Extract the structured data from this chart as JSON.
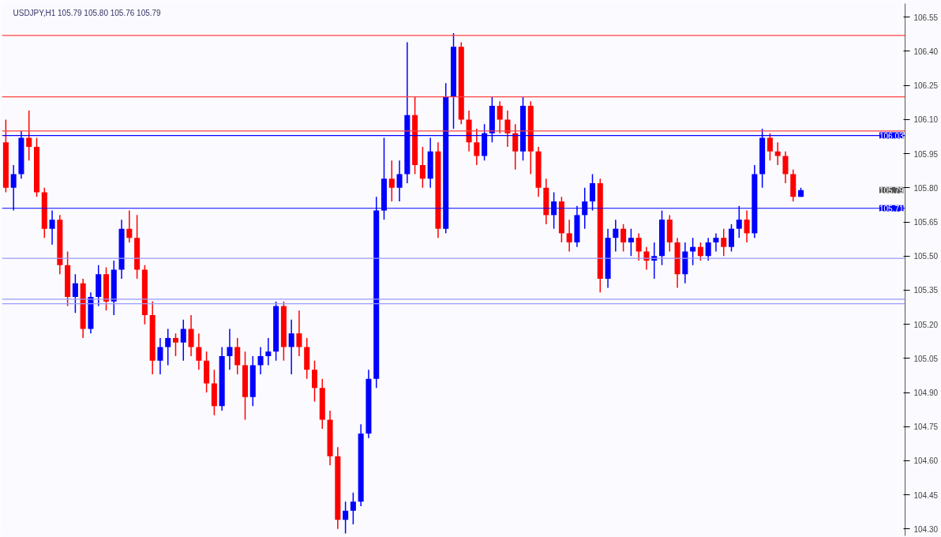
{
  "chart_data": {
    "type": "candlestick",
    "title": "USDJPY,H1  105.79 105.80 105.76 105.79",
    "categories": [
      null,
      null,
      null,
      null,
      null,
      null,
      null,
      null,
      null,
      null,
      null,
      null,
      null,
      null,
      null,
      null,
      null,
      null,
      null,
      null,
      null,
      null,
      null,
      null,
      null,
      null,
      null,
      null,
      null,
      null,
      null,
      null,
      null,
      null,
      null,
      null,
      null,
      null,
      null,
      null,
      null,
      null,
      null,
      null,
      null,
      null,
      null,
      null,
      null,
      null,
      null,
      null,
      null,
      null,
      null,
      null,
      null,
      null,
      null,
      null,
      null,
      null,
      null,
      null,
      null,
      null,
      null,
      null,
      null,
      null,
      null,
      null,
      null,
      null,
      null,
      null,
      null,
      null,
      null,
      null,
      null,
      null,
      null,
      null,
      null,
      null,
      null,
      null,
      null,
      null,
      null,
      null,
      null,
      null,
      null,
      null,
      null,
      null,
      null,
      null,
      null,
      null,
      null,
      null,
      null,
      null,
      null,
      null,
      null,
      null,
      null,
      null,
      null,
      null,
      null,
      null,
      null
    ],
    "ohlc": [
      [
        106.0,
        106.1,
        105.78,
        105.8
      ],
      [
        105.8,
        105.9,
        105.7,
        105.86
      ],
      [
        105.86,
        106.05,
        105.84,
        106.02
      ],
      [
        106.02,
        106.14,
        105.92,
        105.98
      ],
      [
        105.98,
        106.02,
        105.76,
        105.78
      ],
      [
        105.78,
        105.8,
        105.58,
        105.62
      ],
      [
        105.62,
        105.7,
        105.55,
        105.66
      ],
      [
        105.66,
        105.68,
        105.42,
        105.46
      ],
      [
        105.46,
        105.52,
        105.28,
        105.32
      ],
      [
        105.32,
        105.42,
        105.25,
        105.38
      ],
      [
        105.38,
        105.4,
        105.14,
        105.18
      ],
      [
        105.18,
        105.34,
        105.16,
        105.32
      ],
      [
        105.32,
        105.46,
        105.28,
        105.42
      ],
      [
        105.42,
        105.45,
        105.26,
        105.3
      ],
      [
        105.3,
        105.48,
        105.24,
        105.44
      ],
      [
        105.44,
        105.66,
        105.4,
        105.62
      ],
      [
        105.62,
        105.7,
        105.56,
        105.58
      ],
      [
        105.58,
        105.68,
        105.4,
        105.44
      ],
      [
        105.44,
        105.46,
        105.2,
        105.24
      ],
      [
        105.24,
        105.3,
        104.98,
        105.04
      ],
      [
        105.04,
        105.14,
        104.98,
        105.1
      ],
      [
        105.1,
        105.18,
        105.02,
        105.14
      ],
      [
        105.14,
        105.16,
        105.06,
        105.12
      ],
      [
        105.12,
        105.22,
        105.04,
        105.18
      ],
      [
        105.18,
        105.24,
        105.06,
        105.1
      ],
      [
        105.1,
        105.16,
        105.0,
        105.04
      ],
      [
        105.04,
        105.08,
        104.9,
        104.94
      ],
      [
        104.94,
        105.0,
        104.8,
        104.84
      ],
      [
        104.84,
        105.1,
        104.82,
        105.06
      ],
      [
        105.06,
        105.18,
        105.0,
        105.1
      ],
      [
        105.1,
        105.14,
        104.98,
        105.02
      ],
      [
        105.02,
        105.08,
        104.78,
        104.88
      ],
      [
        104.88,
        105.06,
        104.84,
        105.02
      ],
      [
        105.02,
        105.1,
        104.98,
        105.06
      ],
      [
        105.06,
        105.14,
        105.02,
        105.08
      ],
      [
        105.08,
        105.3,
        105.04,
        105.28
      ],
      [
        105.28,
        105.3,
        105.04,
        105.1
      ],
      [
        105.1,
        105.22,
        104.98,
        105.16
      ],
      [
        105.16,
        105.26,
        105.06,
        105.1
      ],
      [
        105.1,
        105.14,
        104.96,
        105.0
      ],
      [
        105.0,
        105.04,
        104.86,
        104.92
      ],
      [
        104.92,
        104.96,
        104.74,
        104.78
      ],
      [
        104.78,
        104.82,
        104.58,
        104.62
      ],
      [
        104.62,
        104.66,
        104.3,
        104.34
      ],
      [
        104.34,
        104.42,
        104.28,
        104.38
      ],
      [
        104.38,
        104.46,
        104.32,
        104.42
      ],
      [
        104.42,
        104.76,
        104.4,
        104.72
      ],
      [
        104.72,
        105.0,
        104.7,
        104.96
      ],
      [
        104.96,
        105.76,
        104.92,
        105.7
      ],
      [
        105.7,
        106.02,
        105.66,
        105.84
      ],
      [
        105.84,
        105.92,
        105.74,
        105.8
      ],
      [
        105.8,
        105.92,
        105.74,
        105.86
      ],
      [
        105.86,
        106.44,
        105.82,
        106.12
      ],
      [
        106.12,
        106.2,
        105.86,
        105.9
      ],
      [
        105.9,
        105.98,
        105.8,
        105.84
      ],
      [
        105.84,
        106.02,
        105.8,
        105.96
      ],
      [
        105.96,
        106.0,
        105.58,
        105.62
      ],
      [
        105.62,
        106.26,
        105.6,
        106.2
      ],
      [
        106.2,
        106.48,
        106.06,
        106.42
      ],
      [
        106.42,
        106.44,
        106.08,
        106.1
      ],
      [
        106.1,
        106.14,
        105.96,
        106.0
      ],
      [
        106.0,
        106.06,
        105.9,
        105.94
      ],
      [
        105.94,
        106.08,
        105.92,
        106.04
      ],
      [
        106.04,
        106.2,
        106.0,
        106.16
      ],
      [
        106.16,
        106.18,
        106.04,
        106.1
      ],
      [
        106.1,
        106.14,
        105.98,
        106.04
      ],
      [
        106.04,
        106.08,
        105.88,
        105.96
      ],
      [
        105.96,
        106.2,
        105.92,
        106.16
      ],
      [
        106.16,
        106.18,
        105.86,
        105.96
      ],
      [
        105.96,
        105.98,
        105.76,
        105.8
      ],
      [
        105.8,
        105.84,
        105.64,
        105.68
      ],
      [
        105.68,
        105.78,
        105.62,
        105.74
      ],
      [
        105.74,
        105.76,
        105.56,
        105.6
      ],
      [
        105.6,
        105.66,
        105.52,
        105.56
      ],
      [
        105.56,
        105.72,
        105.54,
        105.68
      ],
      [
        105.68,
        105.8,
        105.62,
        105.74
      ],
      [
        105.74,
        105.86,
        105.7,
        105.82
      ],
      [
        105.82,
        105.84,
        105.34,
        105.4
      ],
      [
        105.4,
        105.62,
        105.36,
        105.58
      ],
      [
        105.58,
        105.66,
        105.52,
        105.62
      ],
      [
        105.62,
        105.64,
        105.52,
        105.56
      ],
      [
        105.56,
        105.62,
        105.5,
        105.58
      ],
      [
        105.58,
        105.6,
        105.48,
        105.52
      ],
      [
        105.52,
        105.54,
        105.44,
        105.48
      ],
      [
        105.48,
        105.56,
        105.4,
        105.5
      ],
      [
        105.5,
        105.7,
        105.46,
        105.66
      ],
      [
        105.66,
        105.68,
        105.52,
        105.56
      ],
      [
        105.56,
        105.58,
        105.36,
        105.42
      ],
      [
        105.42,
        105.56,
        105.38,
        105.52
      ],
      [
        105.52,
        105.58,
        105.46,
        105.54
      ],
      [
        105.54,
        105.56,
        105.48,
        105.5
      ],
      [
        105.5,
        105.58,
        105.48,
        105.56
      ],
      [
        105.56,
        105.6,
        105.52,
        105.58
      ],
      [
        105.58,
        105.62,
        105.5,
        105.54
      ],
      [
        105.54,
        105.64,
        105.52,
        105.62
      ],
      [
        105.62,
        105.72,
        105.58,
        105.66
      ],
      [
        105.66,
        105.7,
        105.56,
        105.6
      ],
      [
        105.6,
        105.9,
        105.58,
        105.86
      ],
      [
        105.86,
        106.06,
        105.8,
        106.02
      ],
      [
        106.02,
        106.04,
        105.92,
        105.96
      ],
      [
        105.96,
        106.0,
        105.9,
        105.94
      ],
      [
        105.94,
        105.96,
        105.82,
        105.86
      ],
      [
        105.86,
        105.88,
        105.74,
        105.76
      ],
      [
        105.76,
        105.8,
        105.76,
        105.79
      ],
      null,
      null,
      null,
      null,
      null,
      null,
      null,
      null,
      null,
      null,
      null,
      null,
      null
    ],
    "colors": [
      "#ff0000",
      "#0000ff",
      "#0000ff",
      "#ff0000",
      "#ff0000",
      "#ff0000",
      "#0000ff",
      "#ff0000",
      "#ff0000",
      "#0000ff",
      "#ff0000",
      "#0000ff",
      "#0000ff",
      "#ff0000",
      "#0000ff",
      "#0000ff",
      "#ff0000",
      "#ff0000",
      "#ff0000",
      "#ff0000",
      "#0000ff",
      "#0000ff",
      "#ff0000",
      "#0000ff",
      "#ff0000",
      "#ff0000",
      "#ff0000",
      "#ff0000",
      "#0000ff",
      "#0000ff",
      "#ff0000",
      "#ff0000",
      "#0000ff",
      "#0000ff",
      "#0000ff",
      "#0000ff",
      "#ff0000",
      "#0000ff",
      "#ff0000",
      "#ff0000",
      "#ff0000",
      "#ff0000",
      "#ff0000",
      "#ff0000",
      "#0000ff",
      "#0000ff",
      "#0000ff",
      "#0000ff",
      "#0000ff",
      "#0000ff",
      "#ff0000",
      "#0000ff",
      "#0000ff",
      "#ff0000",
      "#ff0000",
      "#0000ff",
      "#ff0000",
      "#0000ff",
      "#0000ff",
      "#ff0000",
      "#ff0000",
      "#ff0000",
      "#0000ff",
      "#0000ff",
      "#ff0000",
      "#ff0000",
      "#ff0000",
      "#0000ff",
      "#ff0000",
      "#ff0000",
      "#ff0000",
      "#0000ff",
      "#ff0000",
      "#ff0000",
      "#0000ff",
      "#0000ff",
      "#0000ff",
      "#ff0000",
      "#0000ff",
      "#0000ff",
      "#ff0000",
      "#0000ff",
      "#ff0000",
      "#ff0000",
      "#0000ff",
      "#0000ff",
      "#ff0000",
      "#ff0000",
      "#0000ff",
      "#0000ff",
      "#ff0000",
      "#0000ff",
      "#0000ff",
      "#ff0000",
      "#0000ff",
      "#0000ff",
      "#ff0000",
      "#0000ff",
      "#0000ff",
      "#ff0000",
      "#ff0000",
      "#ff0000",
      "#ff0000",
      "#0000ff",
      null,
      null,
      null,
      null,
      null,
      null,
      null,
      null,
      null,
      null,
      null,
      null,
      null
    ],
    "ylim": [
      104.27,
      106.61
    ],
    "yticks": [
      {
        "value": 104.3,
        "label": "104.30"
      },
      104.45,
      {
        "value": 104.6,
        "label": "104.60"
      },
      104.75,
      {
        "value": 104.9,
        "label": "104.90"
      },
      105.05,
      {
        "value": 105.2,
        "label": "105.20"
      },
      105.35,
      {
        "value": 105.5,
        "label": "105.50"
      },
      105.65,
      {
        "value": 105.8,
        "label": "105.80"
      },
      105.95,
      {
        "value": 106.1,
        "label": "106.10"
      },
      106.25,
      {
        "value": 106.4,
        "label": "106.40"
      },
      106.55
    ],
    "ref_lines": [
      {
        "axis": "y",
        "value": 106.03,
        "label": "106.03",
        "color": "#0000ff"
      },
      {
        "axis": "y",
        "value": 105.71,
        "label": "105.71",
        "color": "#0000ff"
      },
      {
        "axis": "y",
        "value": 106.47,
        "label": null,
        "color": "#ff4040"
      },
      {
        "axis": "y",
        "value": 106.2,
        "label": null,
        "color": "#ff4040"
      },
      {
        "axis": "y",
        "value": 106.05,
        "label": null,
        "color": "#ff4040"
      },
      {
        "axis": "y",
        "value": 105.49,
        "label": null,
        "color": "#9999ff"
      },
      {
        "axis": "y",
        "value": 105.31,
        "label": null,
        "color": "#9999ff"
      },
      {
        "axis": "y",
        "value": 105.29,
        "label": null,
        "color": "#9999ff"
      }
    ],
    "annotations": [
      "105.79"
    ],
    "grid": false
  }
}
